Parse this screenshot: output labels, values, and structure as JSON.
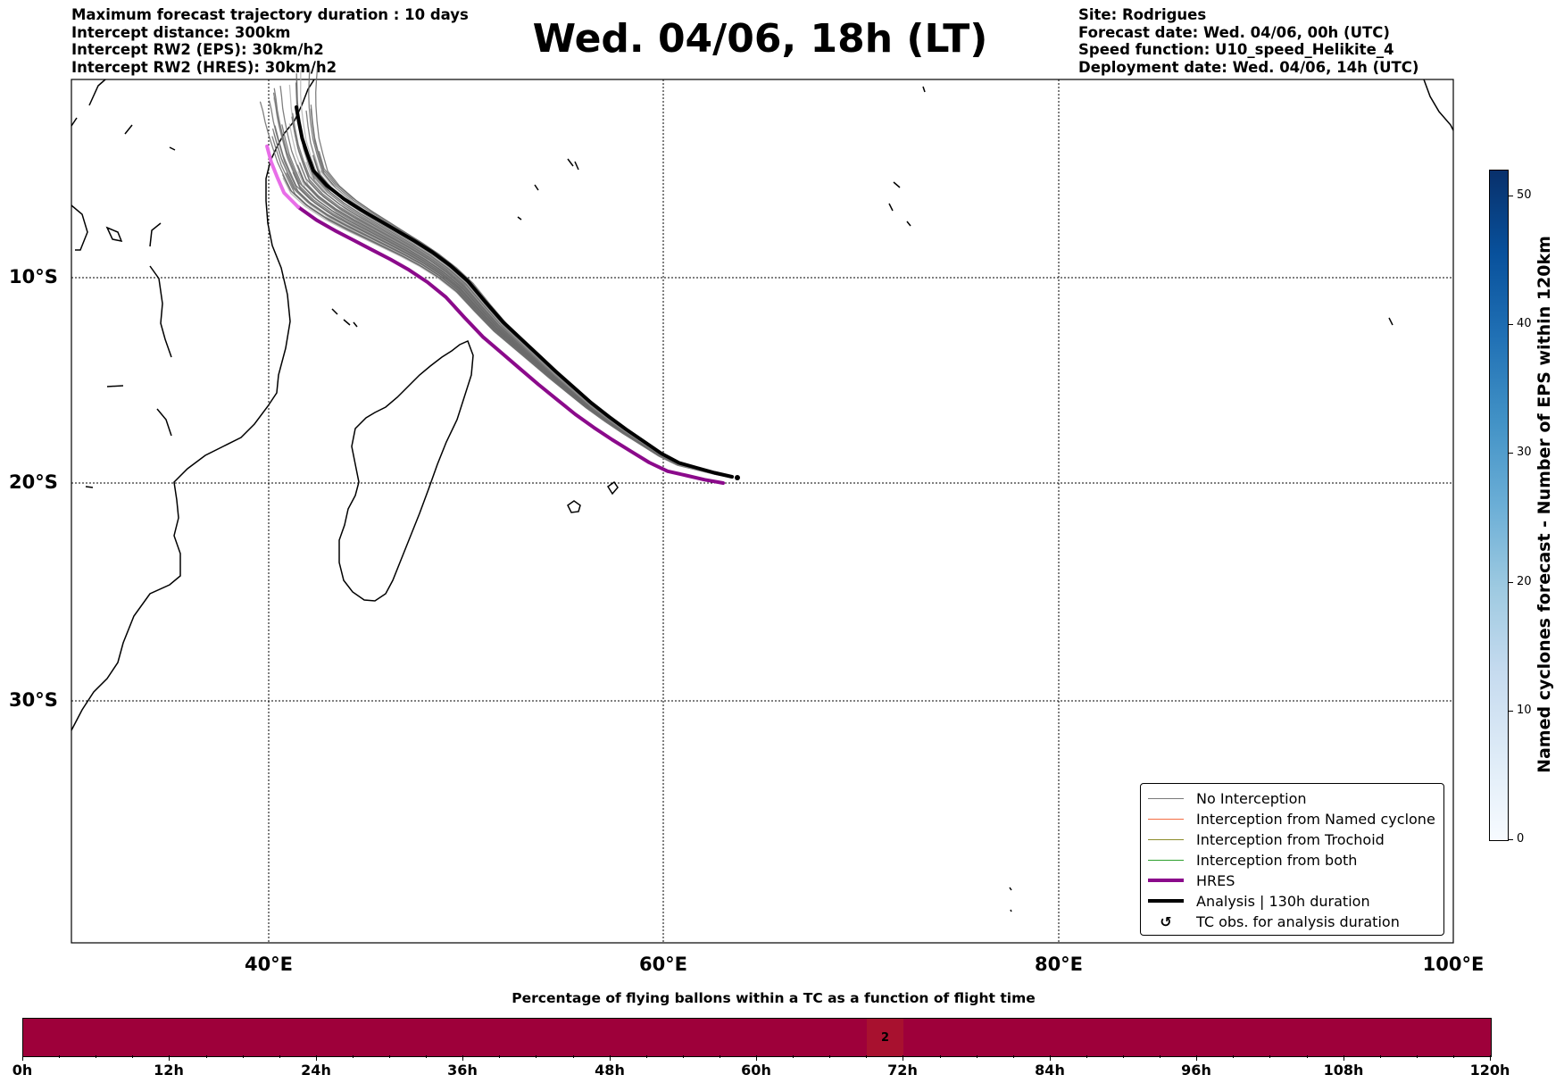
{
  "header_left": [
    "Maximum forecast trajectory duration : 10 days",
    "Intercept distance: 300km",
    "Intercept RW2 (EPS):  30km/h2",
    "Intercept RW2 (HRES): 30km/h2"
  ],
  "title": "Wed. 04/06, 18h (LT)",
  "header_right": [
    "Site: Rodrigues",
    "Forecast date: Wed. 04/06, 00h (UTC)",
    "Speed function: U10_speed_Helikite_4",
    "Deployment date: Wed. 04/06, 14h (UTC)"
  ],
  "map": {
    "lat_labels": [
      "10°S",
      "20°S",
      "30°S"
    ],
    "lon_labels": [
      "40°E",
      "60°E",
      "80°E",
      "100°E"
    ],
    "site_lon_lat": [
      63.4,
      -19.7
    ]
  },
  "legend": {
    "items": [
      {
        "label": "No Interception",
        "color": "#7a7a7a",
        "kind": "thin"
      },
      {
        "label": "Interception from Named cyclone",
        "color": "#f46d43",
        "kind": "thin"
      },
      {
        "label": "Interception from Trochoid",
        "color": "#8c8c2c",
        "kind": "thin"
      },
      {
        "label": "Interception from both",
        "color": "#2ca02c",
        "kind": "thin"
      },
      {
        "label": "HRES",
        "color": "#8b0a8b",
        "kind": "thick"
      },
      {
        "label": "Analysis | 130h duration",
        "color": "#000000",
        "kind": "thick"
      },
      {
        "label": "TC obs. for analysis duration",
        "symbol": "↺",
        "kind": "symbol"
      }
    ]
  },
  "colorbar": {
    "title": "Named cyclones forecast - Number of EPS within 120km",
    "ticks": [
      "0",
      "10",
      "20",
      "30",
      "40",
      "50"
    ],
    "max": 52,
    "colors": [
      "#f7fbff",
      "#08306b"
    ]
  },
  "time_bar": {
    "title": "Percentage of flying ballons within a TC as a function of flight time",
    "ticks": [
      "0h",
      "12h",
      "24h",
      "36h",
      "48h",
      "60h",
      "72h",
      "84h",
      "96h",
      "108h",
      "120h"
    ],
    "highlight_value": "2",
    "highlight_hour_range": [
      69,
      72
    ]
  }
}
